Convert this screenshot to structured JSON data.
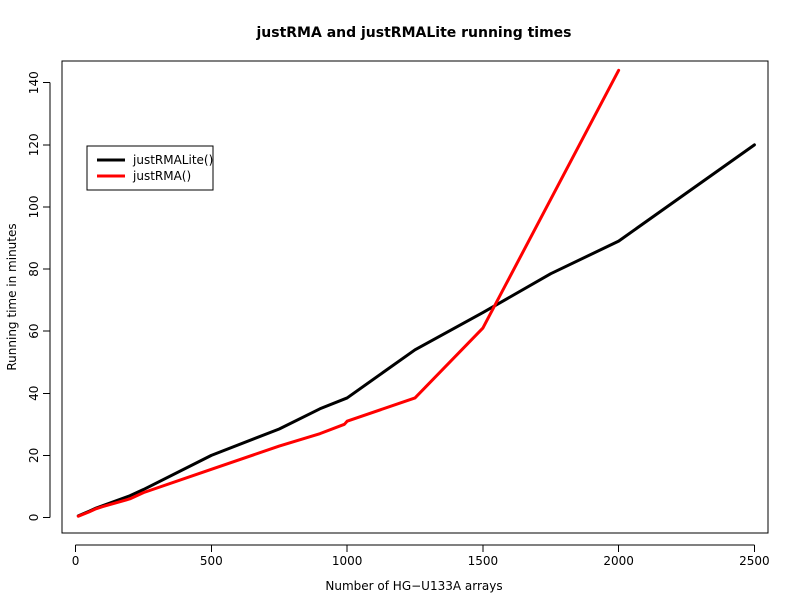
{
  "chart_data": {
    "type": "line",
    "title": "justRMA and justRMALite running times",
    "xlabel": "Number of HG−U133A arrays",
    "ylabel": "Running time in minutes",
    "xlim": [
      -50,
      2550
    ],
    "ylim": [
      -5,
      147
    ],
    "x_ticks": [
      0,
      500,
      1000,
      1500,
      2000,
      2500
    ],
    "y_ticks": [
      0,
      20,
      40,
      60,
      80,
      100,
      120,
      140
    ],
    "legend": {
      "placement": "top-left",
      "entries": [
        "justRMALite()",
        "justRMA()"
      ]
    },
    "grid": false,
    "series": [
      {
        "name": "justRMALite()",
        "color": "#000000",
        "x": [
          10,
          50,
          75,
          100,
          200,
          250,
          500,
          750,
          900,
          1000,
          1250,
          1500,
          1750,
          2000,
          2500
        ],
        "y": [
          0.5,
          2,
          3,
          3.8,
          7,
          9,
          20,
          28.5,
          35,
          38.5,
          54,
          66,
          78.5,
          89,
          120
        ]
      },
      {
        "name": "justRMA()",
        "color": "#ff0000",
        "x": [
          10,
          50,
          75,
          100,
          200,
          250,
          500,
          750,
          900,
          990,
          1000,
          1250,
          1500,
          2000
        ],
        "y": [
          0.4,
          1.8,
          2.8,
          3.5,
          6,
          8,
          15.5,
          23,
          27,
          30,
          31,
          38.5,
          61,
          144
        ]
      }
    ]
  }
}
